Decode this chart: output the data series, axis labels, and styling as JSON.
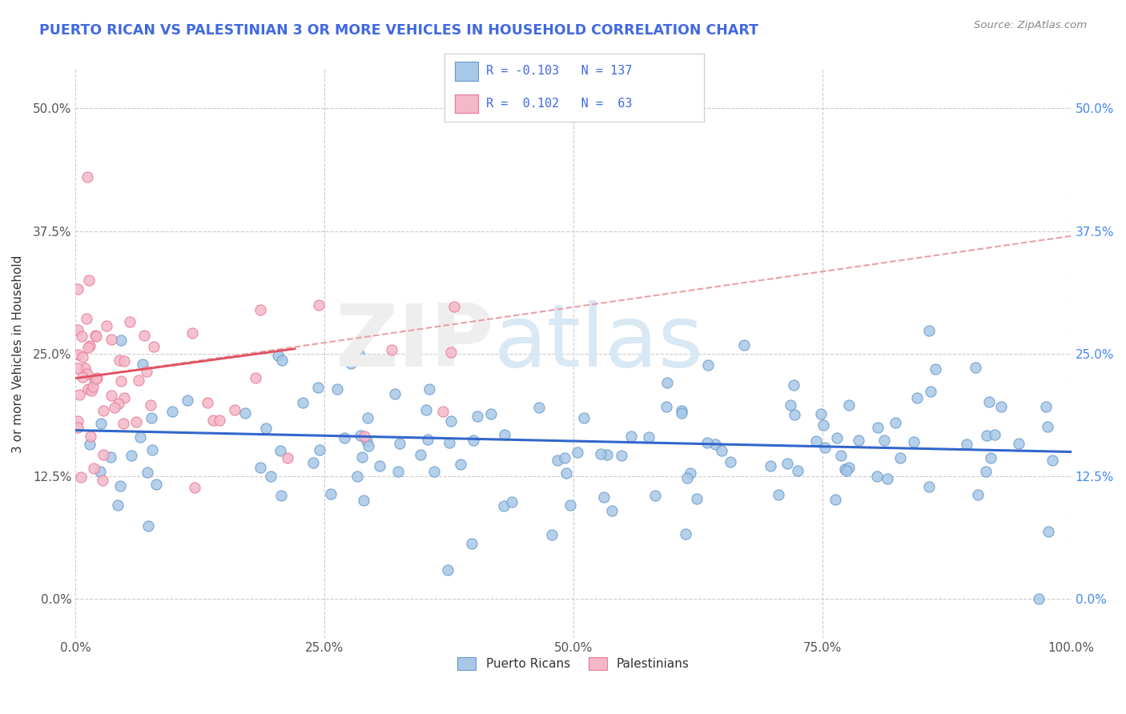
{
  "title": "PUERTO RICAN VS PALESTINIAN 3 OR MORE VEHICLES IN HOUSEHOLD CORRELATION CHART",
  "source_text": "Source: ZipAtlas.com",
  "ylabel": "3 or more Vehicles in Household",
  "xmin": 0.0,
  "xmax": 100.0,
  "ymin": -4.0,
  "ymax": 54.0,
  "yticks": [
    0.0,
    12.5,
    25.0,
    37.5,
    50.0
  ],
  "xticks": [
    0.0,
    25.0,
    50.0,
    75.0,
    100.0
  ],
  "xtick_labels": [
    "0.0%",
    "25.0%",
    "50.0%",
    "75.0%",
    "100.0%"
  ],
  "ytick_labels": [
    "0.0%",
    "12.5%",
    "25.0%",
    "37.5%",
    "50.0%"
  ],
  "blue_color": "#a8c8e8",
  "pink_color": "#f4b8c8",
  "blue_edge_color": "#6899c8",
  "pink_edge_color": "#e87898",
  "blue_line_color": "#3366cc",
  "pink_line_color": "#e05060",
  "pink_dash_color": "#e8a0a8",
  "title_color": "#4169E1",
  "source_color": "#888888",
  "legend_text_color": "#4169E1",
  "right_axis_color": "#4488ee",
  "n_blue": 137,
  "n_pink": 63,
  "blue_trend_y0": 17.2,
  "blue_trend_y1": 15.0,
  "pink_solid_x0": 0.0,
  "pink_solid_y0": 22.5,
  "pink_solid_x1": 22.0,
  "pink_solid_y1": 25.5,
  "pink_dash_x0": 0.0,
  "pink_dash_y0": 22.5,
  "pink_dash_x1": 100.0,
  "pink_dash_y1": 37.0
}
